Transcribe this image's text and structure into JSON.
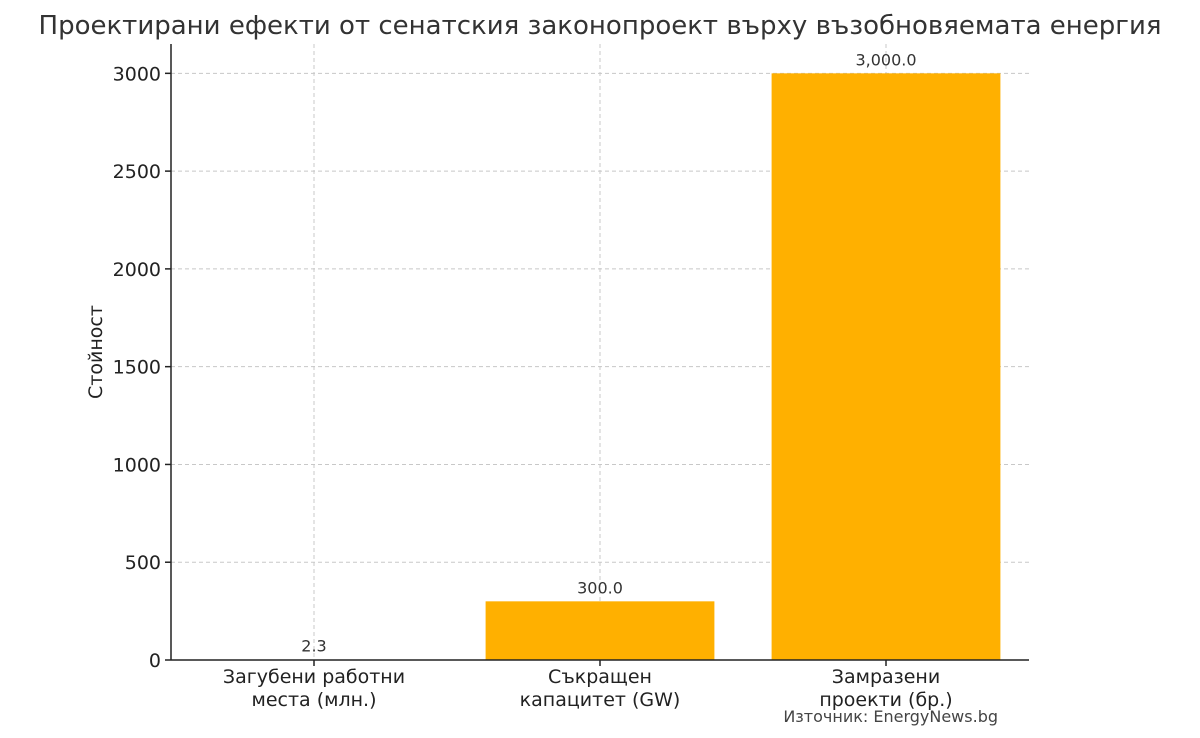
{
  "chart_data": {
    "type": "bar",
    "title": "Проектирани ефекти от сенатския законопроект върху възобновяемата енергия",
    "ylabel": "Стойност",
    "xlabel": "",
    "categories": [
      [
        "Загубени работни",
        "места (млн.)"
      ],
      [
        "Съкращен",
        "капацитет (GW)"
      ],
      [
        "Замразени",
        "проекти (бр.)"
      ]
    ],
    "values": [
      2.3,
      300.0,
      3000.0
    ],
    "data_labels": [
      "2.3",
      "300.0",
      "3,000.0"
    ],
    "ylim": [
      0,
      3150
    ],
    "yticks": [
      0,
      500,
      1000,
      1500,
      2000,
      2500,
      3000
    ],
    "grid": true,
    "bar_color": "#FFB000",
    "source": "Източник: EnergyNews.bg"
  }
}
